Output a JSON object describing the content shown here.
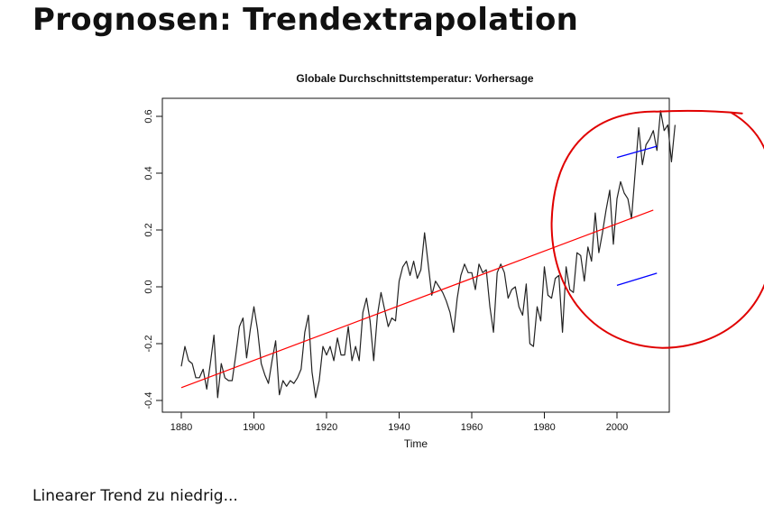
{
  "slide": {
    "title": "Prognosen: Trendextrapolation",
    "footer": "Linearer Trend zu niedrig..."
  },
  "chart_data": {
    "type": "line",
    "title": "Globale Durchschnittstemperatur: Vorhersage",
    "xlabel": "Time",
    "ylabel": "",
    "xlim": [
      1880,
      2010
    ],
    "ylim": [
      -0.42,
      0.65
    ],
    "xticks": [
      1880,
      1900,
      1920,
      1940,
      1960,
      1980,
      2000
    ],
    "xtick_labels": [
      "1880",
      "1900",
      "1920",
      "1940",
      "1960",
      "1980",
      "2000"
    ],
    "yticks": [
      -0.4,
      -0.2,
      0.0,
      0.2,
      0.4,
      0.6
    ],
    "ytick_labels": [
      "-0.4",
      "-0.2",
      "0.0",
      "0.2",
      "0.4",
      "0.6"
    ],
    "grid": false,
    "colors": {
      "temperature": "#222222",
      "trend": "#ff0000",
      "bands": "#0000ff",
      "annotation": "#e00000"
    },
    "series": [
      {
        "x_start": 1880,
        "values": [
          -0.28,
          -0.21,
          -0.26,
          -0.27,
          -0.32,
          -0.32,
          -0.29,
          -0.36,
          -0.27,
          -0.17,
          -0.39,
          -0.27,
          -0.32,
          -0.33,
          -0.33,
          -0.24,
          -0.14,
          -0.11,
          -0.25,
          -0.15,
          -0.07,
          -0.15,
          -0.27,
          -0.31,
          -0.34,
          -0.26,
          -0.19,
          -0.38,
          -0.33,
          -0.35,
          -0.33,
          -0.34,
          -0.32,
          -0.29,
          -0.16,
          -0.1,
          -0.3,
          -0.39,
          -0.33,
          -0.21,
          -0.24,
          -0.21,
          -0.26,
          -0.18,
          -0.24,
          -0.24,
          -0.14,
          -0.26,
          -0.21,
          -0.26,
          -0.09,
          -0.04,
          -0.12,
          -0.26,
          -0.1,
          -0.02,
          -0.08,
          -0.14,
          -0.11,
          -0.12,
          0.02,
          0.07,
          0.09,
          0.04,
          0.09,
          0.03,
          0.06,
          0.19,
          0.08,
          -0.03,
          0.02,
          0.0,
          -0.02,
          -0.05,
          -0.09,
          -0.16,
          -0.04,
          0.04,
          0.08,
          0.05,
          0.05,
          -0.01,
          0.08,
          0.05,
          0.06,
          -0.07,
          -0.16,
          0.05,
          0.08,
          0.05,
          -0.04,
          -0.01,
          0.0,
          -0.07,
          -0.1,
          0.01,
          -0.2,
          -0.21,
          -0.07,
          -0.12,
          0.07,
          -0.03,
          -0.04,
          0.03,
          0.04,
          -0.16,
          0.07,
          -0.01,
          -0.02,
          0.12,
          0.11,
          0.02,
          0.14,
          0.09,
          0.26,
          0.12,
          0.19,
          0.27,
          0.34,
          0.15,
          0.31,
          0.37,
          0.33,
          0.31,
          0.24,
          0.4,
          0.56,
          0.43,
          0.5,
          0.52,
          0.55,
          0.48,
          0.62,
          0.55,
          0.57,
          0.44,
          0.57
        ]
      },
      {
        "x": [
          1880,
          2010
        ],
        "y": [
          -0.355,
          0.27
        ]
      },
      {
        "x": [
          2000,
          2011
        ],
        "y": [
          0.455,
          0.495
        ]
      },
      {
        "x": [
          2000,
          2011
        ],
        "y": [
          0.005,
          0.048
        ]
      }
    ],
    "annotations": [
      {
        "type": "circle",
        "x_range": [
          1982,
          2043
        ],
        "y_range": [
          -0.215,
          0.62
        ]
      }
    ]
  }
}
